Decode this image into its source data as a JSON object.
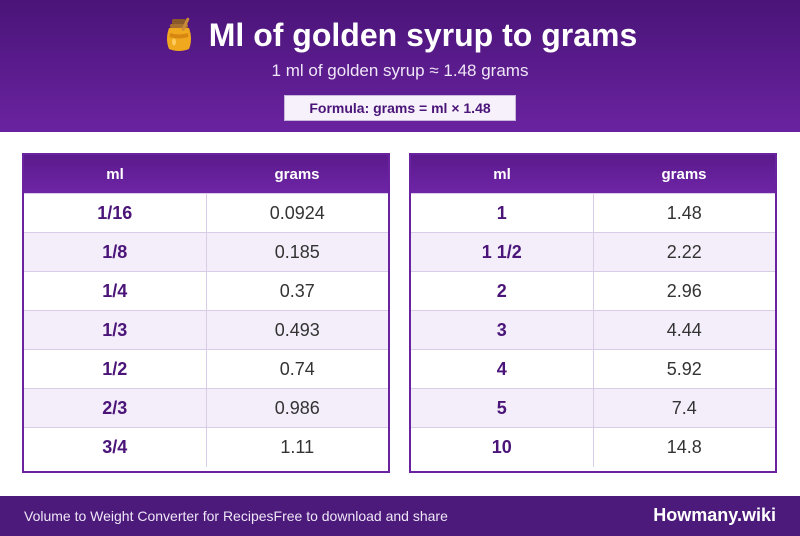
{
  "header": {
    "title": "Ml of golden syrup to grams",
    "subtitle": "1 ml of golden syrup ≈ 1.48 grams",
    "formula": "Formula: grams = ml × 1.48",
    "icon": "honey-jar-icon"
  },
  "tables": {
    "col_ml": "ml",
    "col_grams": "grams",
    "left": [
      {
        "ml": "1/16",
        "grams": "0.0924"
      },
      {
        "ml": "1/8",
        "grams": "0.185"
      },
      {
        "ml": "1/4",
        "grams": "0.37"
      },
      {
        "ml": "1/3",
        "grams": "0.493"
      },
      {
        "ml": "1/2",
        "grams": "0.74"
      },
      {
        "ml": "2/3",
        "grams": "0.986"
      },
      {
        "ml": "3/4",
        "grams": "1.11"
      }
    ],
    "right": [
      {
        "ml": "1",
        "grams": "1.48"
      },
      {
        "ml": "1 1/2",
        "grams": "2.22"
      },
      {
        "ml": "2",
        "grams": "2.96"
      },
      {
        "ml": "3",
        "grams": "4.44"
      },
      {
        "ml": "4",
        "grams": "5.92"
      },
      {
        "ml": "5",
        "grams": "7.4"
      },
      {
        "ml": "10",
        "grams": "14.8"
      }
    ]
  },
  "footer": {
    "left_text": "Volume to Weight Converter for RecipesFree to download and share",
    "brand": "Howmany.wiki"
  },
  "colors": {
    "primary": "#6a23a0",
    "dark": "#4a1478",
    "row_alt": "#f4eefa"
  }
}
